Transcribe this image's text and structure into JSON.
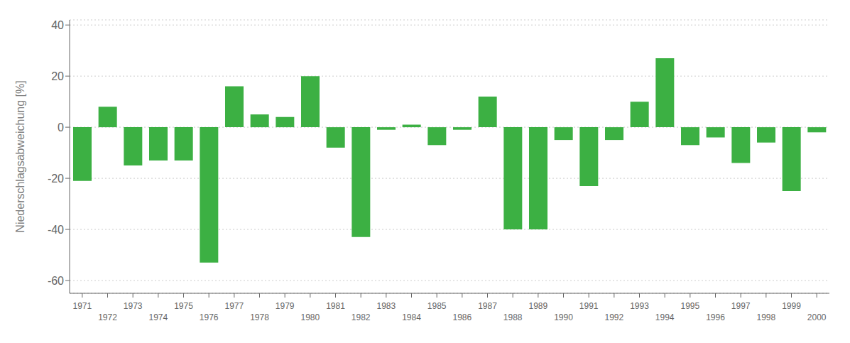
{
  "chart_data": {
    "type": "bar",
    "categories": [
      "1971",
      "1972",
      "1973",
      "1974",
      "1975",
      "1976",
      "1977",
      "1978",
      "1979",
      "1980",
      "1981",
      "1982",
      "1983",
      "1984",
      "1985",
      "1986",
      "1987",
      "1988",
      "1989",
      "1990",
      "1991",
      "1992",
      "1993",
      "1994",
      "1995",
      "1996",
      "1997",
      "1998",
      "1999",
      "2000"
    ],
    "values": [
      -21,
      8,
      -15,
      -13,
      -13,
      -53,
      16,
      5,
      4,
      20,
      -8,
      -43,
      -1,
      1,
      -7,
      -1,
      12,
      -40,
      -40,
      -5,
      -23,
      -5,
      10,
      27,
      -7,
      -4,
      -14,
      -6,
      -25,
      -2
    ],
    "color": "#3cb043",
    "ylabel": "Niederschlagsabweichung [%]",
    "ylim": [
      -65,
      42
    ],
    "yticks": [
      -60,
      -40,
      -20,
      0,
      20,
      40
    ],
    "grid": true
  }
}
